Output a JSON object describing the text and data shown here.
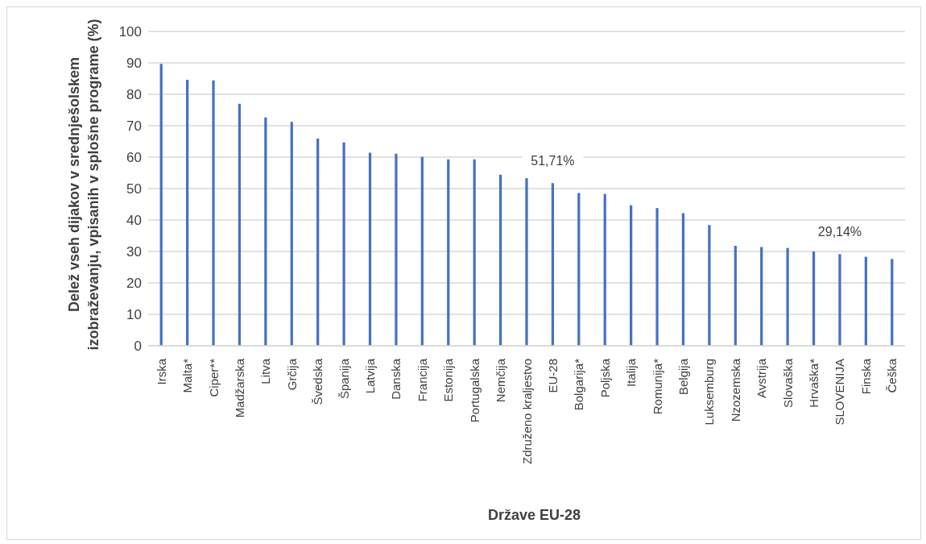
{
  "chart_data": {
    "type": "bar",
    "xlabel": "Države EU-28",
    "ylabel": "Delež vseh dijakov v srednješolskem izobraževanju, vpisanih v splošne programe (%)",
    "categories": [
      "Irska",
      "Malta*",
      "Ciper**",
      "Madžarska",
      "Litva",
      "Grčija",
      "Švedska",
      "Španija",
      "Latvija",
      "Danska",
      "Francija",
      "Estonija",
      "Portugalska",
      "Nemčija",
      "Združeno kraljestvo",
      "EU-28",
      "Bolgarija*",
      "Poljska",
      "Italija",
      "Romunija*",
      "Belgija",
      "Luksemburg",
      "Nzozemska",
      "Avstrija",
      "Slovaška",
      "Hrvaška*",
      "SLOVENIJA",
      "Finska",
      "Češka"
    ],
    "values": [
      89.7,
      84.6,
      84.4,
      77.0,
      72.6,
      71.2,
      65.9,
      64.7,
      61.4,
      61.1,
      60.1,
      59.3,
      59.3,
      54.4,
      53.3,
      51.71,
      48.6,
      48.3,
      44.7,
      43.8,
      42.2,
      38.4,
      31.8,
      31.4,
      31.1,
      30.0,
      29.14,
      28.3,
      27.6
    ],
    "value_labels": [
      null,
      null,
      null,
      null,
      null,
      null,
      null,
      null,
      null,
      null,
      null,
      null,
      null,
      null,
      null,
      "51,71%",
      null,
      null,
      null,
      null,
      null,
      null,
      null,
      null,
      null,
      null,
      "29,14%",
      null,
      null
    ],
    "color": "#4472c4",
    "ylim": [
      0,
      100
    ],
    "yticks": [
      0,
      10,
      20,
      30,
      40,
      50,
      60,
      70,
      80,
      90,
      100
    ],
    "grid": "y"
  }
}
